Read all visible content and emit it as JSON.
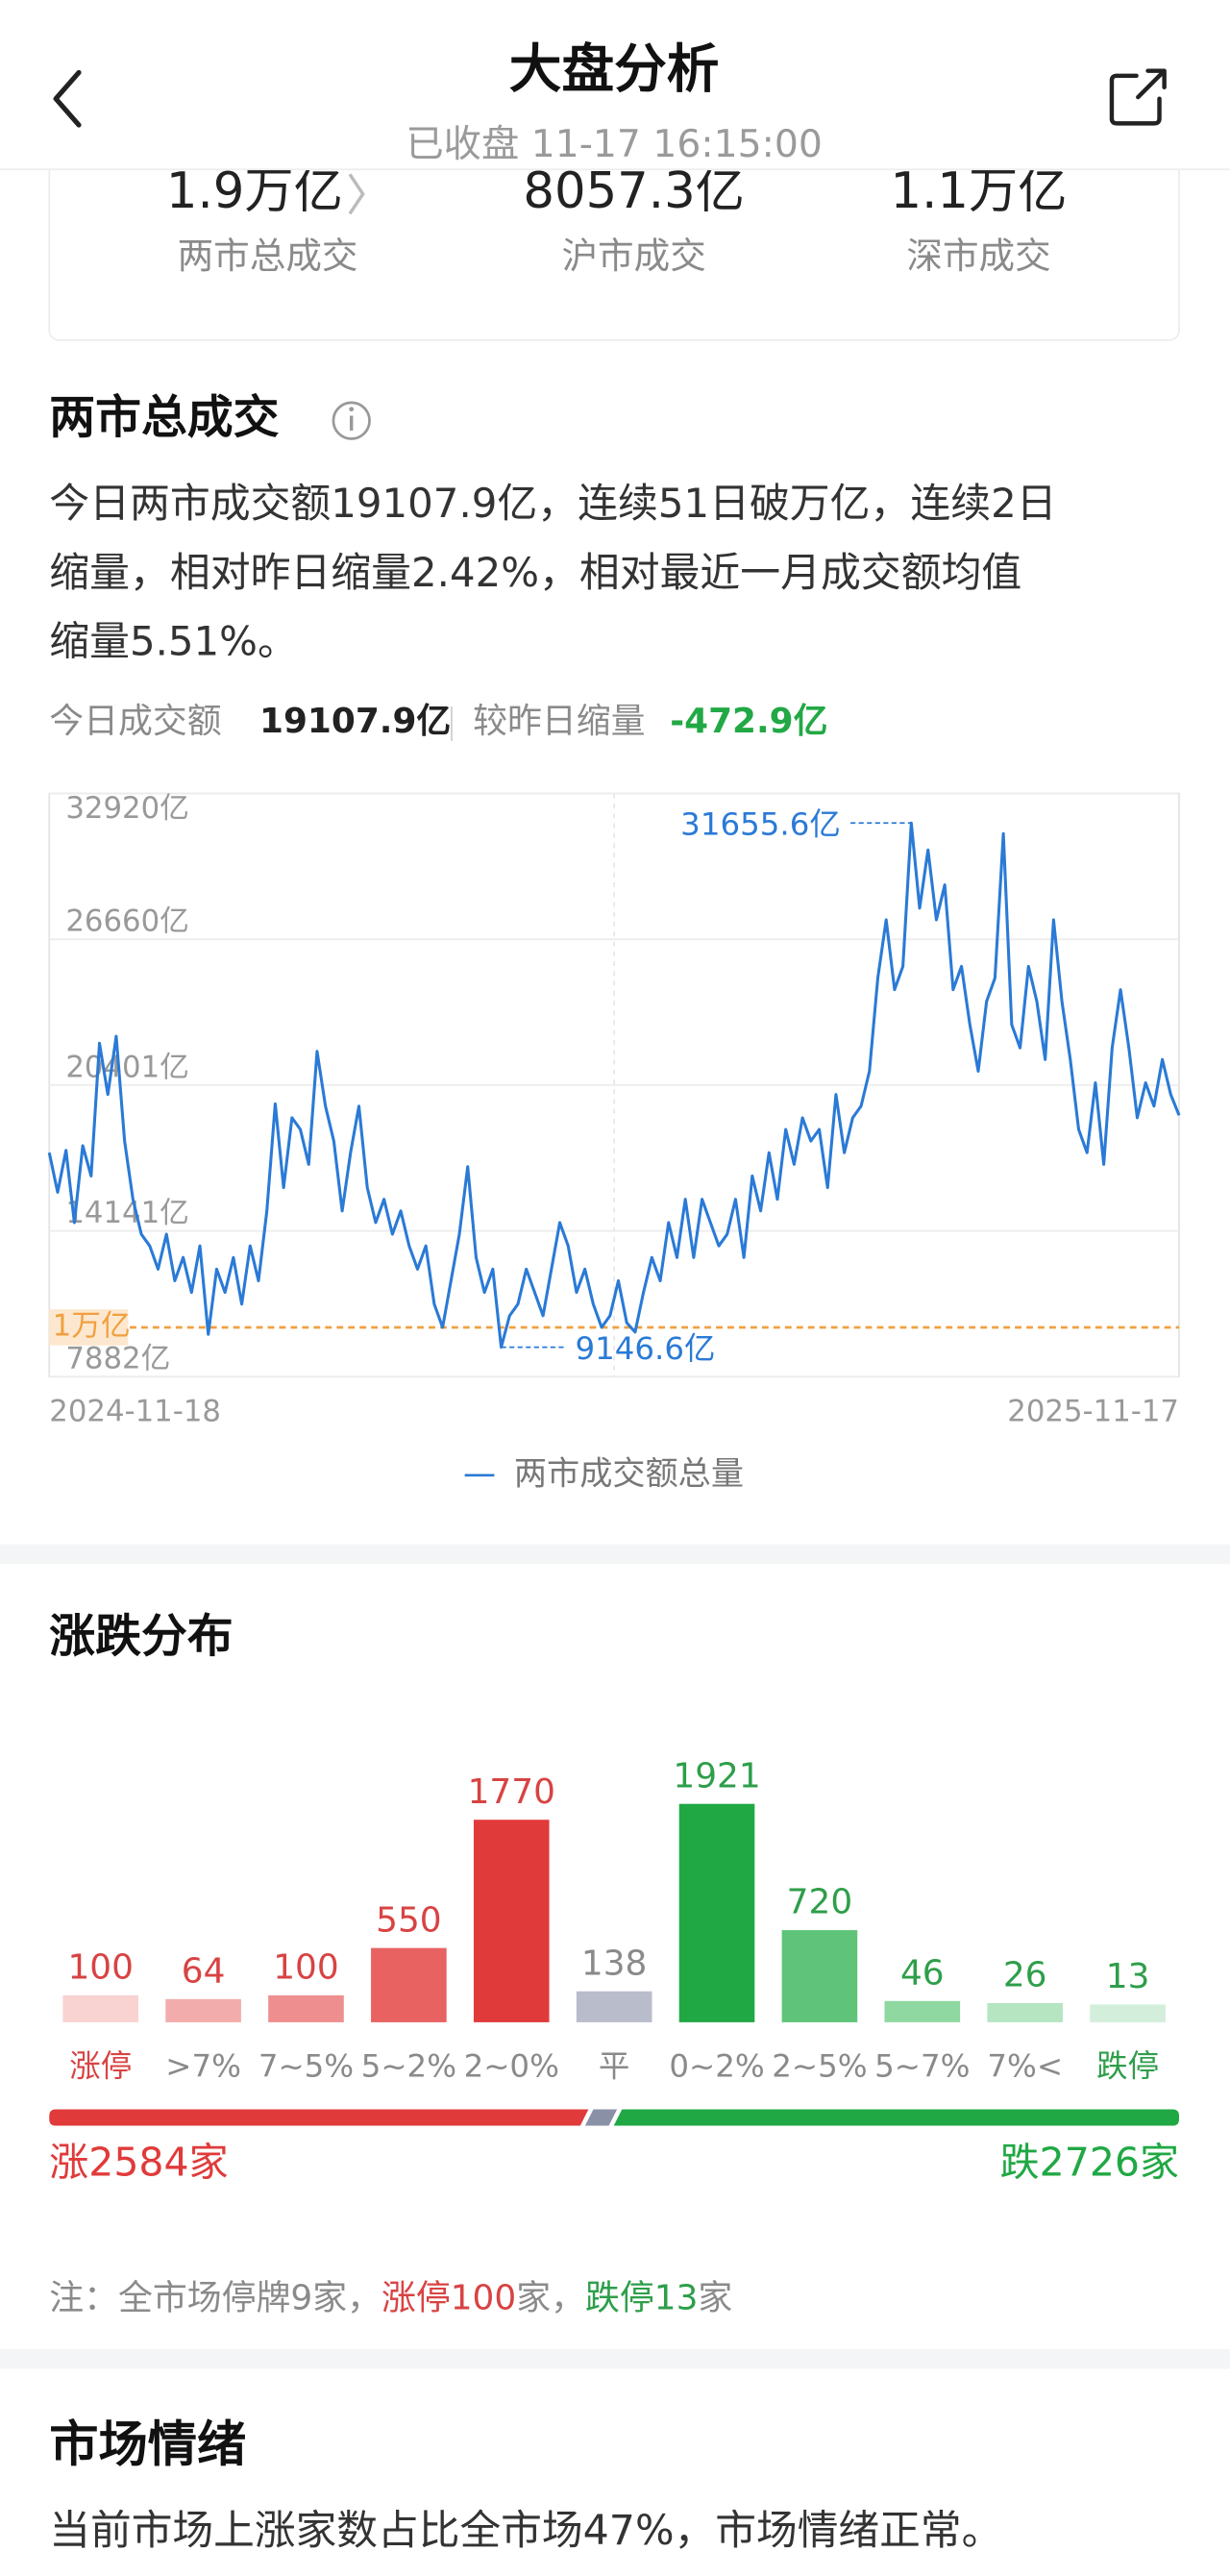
{
  "header": {
    "title": "大盘分析",
    "subtitle": "已收盘 11-17 16:15:00"
  },
  "summary": [
    {
      "value": "1.9万亿",
      "label": "两市总成交"
    },
    {
      "value": "8057.3亿",
      "label": "沪市成交"
    },
    {
      "value": "1.1万亿",
      "label": "深市成交"
    }
  ],
  "turnover": {
    "title": "两市总成交",
    "description_lines": [
      "今日两市成交额19107.9亿，连续51日破万亿，连续2日",
      "缩量，相对昨日缩量2.42%，相对最近一月成交额均值",
      "缩量5.51%。"
    ],
    "today_label": "今日成交额",
    "today_value": "19107.9亿",
    "change_label": "较昨日缩量",
    "change_value": "-472.9亿",
    "chart": {
      "type": "line",
      "x": [
        "2024-11-18",
        null,
        null,
        null,
        null,
        null,
        null,
        null,
        null,
        null,
        null,
        null,
        null,
        null,
        null,
        null,
        null,
        null,
        null,
        null,
        null,
        null,
        null,
        null,
        null,
        null,
        null,
        null,
        null,
        null,
        null,
        null,
        null,
        null,
        null,
        null,
        null,
        null,
        null,
        null,
        null,
        null,
        null,
        null,
        null,
        null,
        null,
        null,
        null,
        null,
        null,
        null,
        null,
        null,
        null,
        null,
        null,
        null,
        null,
        null,
        null,
        null,
        null,
        null,
        null,
        null,
        null,
        null,
        null,
        null,
        null,
        null,
        null,
        null,
        null,
        null,
        null,
        null,
        null,
        null,
        null,
        null,
        null,
        null,
        null,
        null,
        null,
        null,
        null,
        null,
        null,
        null,
        null,
        null,
        null,
        null,
        null,
        null,
        null,
        null,
        null,
        null,
        null,
        null,
        null,
        null,
        null,
        null,
        null,
        null,
        null,
        null,
        null,
        null,
        null,
        null,
        null,
        null,
        null,
        null,
        null,
        null,
        null,
        null,
        null,
        null,
        null,
        null,
        null,
        null,
        null,
        null,
        null,
        null,
        null,
        "2025-11-17"
      ],
      "series": [
        {
          "name": "两市成交额总量",
          "color": "#2a7ad6",
          "values": [
            17500,
            15800,
            17600,
            14500,
            17800,
            16500,
            22200,
            20000,
            22500,
            18000,
            15500,
            14000,
            13500,
            12500,
            14000,
            12000,
            13000,
            11500,
            13500,
            9700,
            12500,
            11500,
            13000,
            11000,
            13500,
            12000,
            15000,
            19600,
            16000,
            19000,
            18500,
            17000,
            21850,
            19500,
            18000,
            15000,
            17500,
            19500,
            16000,
            14500,
            15500,
            14000,
            15000,
            13500,
            12500,
            13500,
            11000,
            10000,
            12000,
            14000,
            16900,
            13000,
            11500,
            12500,
            9146.6,
            10500,
            11000,
            12500,
            11500,
            10500,
            12500,
            14500,
            13500,
            11500,
            12500,
            11000,
            10000,
            10500,
            12000,
            10200,
            9800,
            11500,
            13000,
            12000,
            14500,
            13000,
            15500,
            13000,
            15500,
            14500,
            13500,
            14000,
            15500,
            13000,
            16500,
            15000,
            17500,
            15500,
            18500,
            17000,
            19000,
            18000,
            18500,
            16000,
            20000,
            17500,
            19000,
            19500,
            21000,
            25000,
            27500,
            24500,
            25500,
            31655.6,
            28000,
            30500,
            27500,
            29000,
            24500,
            25500,
            23000,
            21000,
            24000,
            25000,
            31200,
            23000,
            22000,
            25500,
            24000,
            21500,
            27500,
            24000,
            21500,
            18500,
            17500,
            20500,
            17000,
            22000,
            24500,
            22000,
            19000,
            20500,
            19500,
            21500,
            20000,
            19107.9
          ]
        }
      ],
      "ylim": [
        7882,
        32920
      ],
      "yticks": [
        {
          "value": 7882,
          "label": "7882亿"
        },
        {
          "value": 14141,
          "label": "14141亿"
        },
        {
          "value": 20401,
          "label": "20401亿"
        },
        {
          "value": 26660,
          "label": "26660亿"
        },
        {
          "value": 32920,
          "label": "32920亿"
        }
      ],
      "grid": true,
      "reference_line": {
        "value": 10000,
        "label": "1万亿",
        "color": "#f0a040"
      },
      "max_label": {
        "value": 31655.6,
        "label": "31655.6亿"
      },
      "min_label": {
        "value": 9146.6,
        "label": "9146.6亿"
      }
    }
  },
  "distribution": {
    "title": "涨跌分布",
    "chart": {
      "type": "bar",
      "categories": [
        "涨停",
        ">7%",
        "7~5%",
        "5~2%",
        "2~0%",
        "平",
        "0~2%",
        "2~5%",
        "5~7%",
        "7%<",
        "跌停"
      ],
      "values": [
        100,
        64,
        100,
        550,
        1770,
        138,
        1921,
        720,
        46,
        26,
        13
      ],
      "colors": [
        "#f9d2d2",
        "#f3acac",
        "#ee8e8e",
        "#e86262",
        "#e03a3a",
        "#b8bccb",
        "#20a844",
        "#5fc47a",
        "#8fd8a1",
        "#b6e5c1",
        "#d3efdb"
      ],
      "value_label_colors": [
        "#d84343",
        "#d84343",
        "#d84343",
        "#d84343",
        "#d84343",
        "#8a8a8a",
        "#2e9e4a",
        "#2e9e4a",
        "#2e9e4a",
        "#2e9e4a",
        "#2e9e4a"
      ],
      "category_label_colors": [
        "#d84343",
        "#8a8a8a",
        "#8a8a8a",
        "#8a8a8a",
        "#8a8a8a",
        "#8a8a8a",
        "#8a8a8a",
        "#8a8a8a",
        "#8a8a8a",
        "#8a8a8a",
        "#2e9e4a"
      ]
    },
    "ratio": {
      "up": {
        "value": 2584,
        "label": "涨2584家"
      },
      "down": {
        "value": 2726,
        "label": "跌2726家"
      },
      "up_color": "#e03a3a",
      "down_color": "#20a844",
      "flat_color": "#8a90a6"
    },
    "note": [
      "注：全市场停牌9家，",
      "涨停",
      "100",
      "家，",
      "跌停",
      "13",
      "家"
    ]
  },
  "sentiment": {
    "title": "市场情绪",
    "text": "当前市场上涨家数占比全市场47%，市场情绪正常。"
  }
}
